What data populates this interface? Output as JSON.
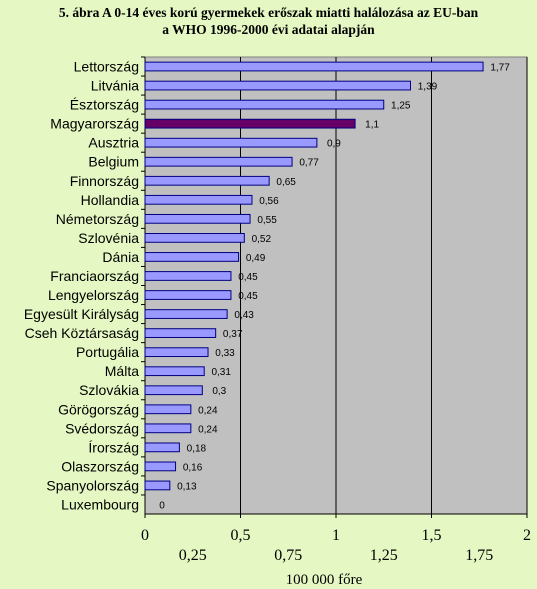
{
  "title_line1": "5. ábra A 0-14 éves korú gyermekek erőszak miatti halálozása az EU-ban",
  "title_line2": "a WHO 1996-2000 évi adatai alapján",
  "chart_data": {
    "type": "bar",
    "orientation": "horizontal",
    "categories": [
      "Lettország",
      "Litvánia",
      "Észtország",
      "Magyarország",
      "Ausztria",
      "Belgium",
      "Finnország",
      "Hollandia",
      "Németország",
      "Szlovénia",
      "Dánia",
      "Franciaország",
      "Lengyelország",
      "Egyesült Királyság",
      "Cseh Köztársaság",
      "Portugália",
      "Málta",
      "Szlovákia",
      "Görögország",
      "Svédország",
      "Írország",
      "Olaszország",
      "Spanyolország",
      "Luxembourg"
    ],
    "values": [
      1.77,
      1.39,
      1.25,
      1.1,
      0.9,
      0.77,
      0.65,
      0.56,
      0.55,
      0.52,
      0.49,
      0.45,
      0.45,
      0.43,
      0.37,
      0.33,
      0.31,
      0.3,
      0.24,
      0.24,
      0.18,
      0.16,
      0.13,
      0
    ],
    "value_labels": [
      "1,77",
      "1,39",
      "1,25",
      "1,1",
      "0,9",
      "0,77",
      "0,65",
      "0,56",
      "0,55",
      "0,52",
      "0,49",
      "0,45",
      "0,45",
      "0,43",
      "0,37",
      "0,33",
      "0,31",
      "0,3",
      "0,24",
      "0,24",
      "0,18",
      "0,16",
      "0,13",
      "0"
    ],
    "highlight_category": "Magyarország",
    "xlim": [
      0,
      2
    ],
    "major_ticks": [
      "0",
      "0,5",
      "1",
      "1,5",
      "2"
    ],
    "minor_ticks": [
      "0,25",
      "0,75",
      "1,25",
      "1,75"
    ],
    "xlabel": "100 000 főre",
    "grid": "vertical",
    "legend": "none",
    "colors": {
      "background": "#e5f7c2",
      "plot_area": "#c0c0c0",
      "bar": "#9999ff",
      "bar_highlight": "#660066",
      "bar_border": "#000080"
    }
  }
}
